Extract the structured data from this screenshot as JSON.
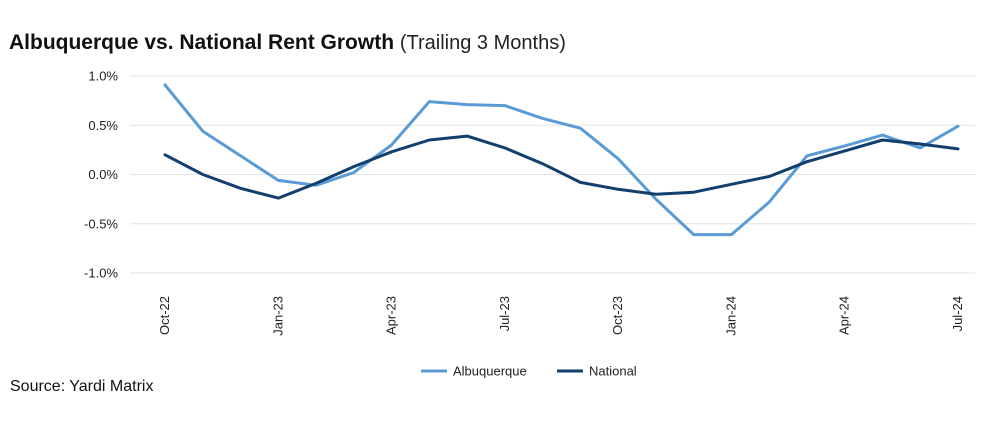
{
  "title": "Albuquerque vs. National Rent Growth",
  "subtitle": "(Trailing 3 Months)",
  "source": "Source: Yardi Matrix",
  "chart_data": {
    "type": "line",
    "x": [
      "Oct-22",
      "Nov-22",
      "Dec-22",
      "Jan-23",
      "Feb-23",
      "Mar-23",
      "Apr-23",
      "May-23",
      "Jun-23",
      "Jul-23",
      "Aug-23",
      "Sep-23",
      "Oct-23",
      "Nov-23",
      "Dec-23",
      "Jan-24",
      "Feb-24",
      "Mar-24",
      "Apr-24",
      "May-24",
      "Jun-24",
      "Jul-24"
    ],
    "x_tick_labels": [
      "Oct-22",
      "Jan-23",
      "Apr-23",
      "Jul-23",
      "Oct-23",
      "Jan-24",
      "Apr-24",
      "Jul-24"
    ],
    "x_tick_indices": [
      0,
      3,
      6,
      9,
      12,
      15,
      18,
      21
    ],
    "y_tick_labels": [
      "1.0%",
      "0.5%",
      "0.0%",
      "-0.5%",
      "-1.0%"
    ],
    "y_ticks": [
      1.0,
      0.5,
      0.0,
      -0.5,
      -1.0
    ],
    "ylim": [
      -1.0,
      1.0
    ],
    "grid": true,
    "legend_position": "bottom-center",
    "series": [
      {
        "name": "Albuquerque",
        "color": "#5b9bd5",
        "values": [
          0.91,
          0.44,
          0.19,
          -0.06,
          -0.11,
          0.02,
          0.3,
          0.74,
          0.71,
          0.7,
          0.57,
          0.47,
          0.16,
          -0.25,
          -0.61,
          -0.61,
          -0.28,
          0.19,
          0.29,
          0.4,
          0.27,
          0.49
        ]
      },
      {
        "name": "National",
        "color": "#123f6e",
        "values": [
          0.2,
          0.0,
          -0.14,
          -0.24,
          -0.09,
          0.08,
          0.23,
          0.35,
          0.39,
          0.27,
          0.11,
          -0.08,
          -0.15,
          -0.2,
          -0.18,
          -0.1,
          -0.02,
          0.13,
          0.24,
          0.35,
          0.31,
          0.26
        ]
      }
    ]
  }
}
